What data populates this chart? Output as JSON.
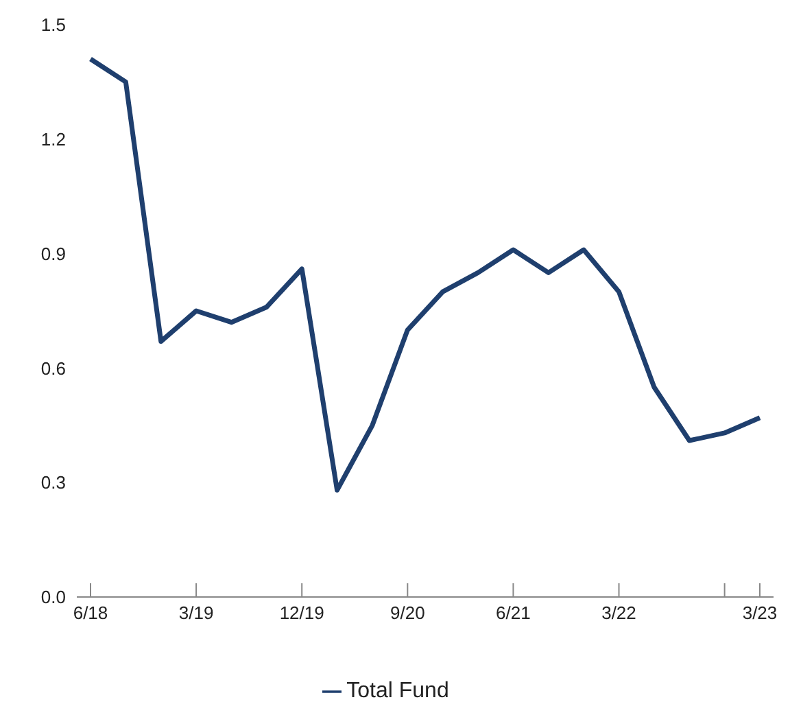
{
  "chart_data": {
    "type": "line",
    "categories": [
      "6/18",
      null,
      null,
      "3/19",
      null,
      null,
      "12/19",
      null,
      null,
      "9/20",
      null,
      null,
      "6/21",
      null,
      null,
      "3/22",
      null,
      null,
      null,
      "3/23"
    ],
    "series": [
      {
        "name": "Total Fund",
        "color": "#1f3f6e",
        "values": [
          1.41,
          1.35,
          0.67,
          0.75,
          0.72,
          0.76,
          0.86,
          0.28,
          0.45,
          0.7,
          0.8,
          0.85,
          0.91,
          0.85,
          0.91,
          0.8,
          0.55,
          0.41,
          0.43,
          0.47
        ]
      }
    ],
    "ylim": [
      0,
      1.5
    ],
    "yticks": [
      {
        "value": 0,
        "label": "0.0"
      },
      0.3,
      0.6,
      0.9,
      1.2,
      1.5
    ],
    "grid": false,
    "legend": "bottom",
    "marker": "none",
    "line_style": "solid"
  }
}
